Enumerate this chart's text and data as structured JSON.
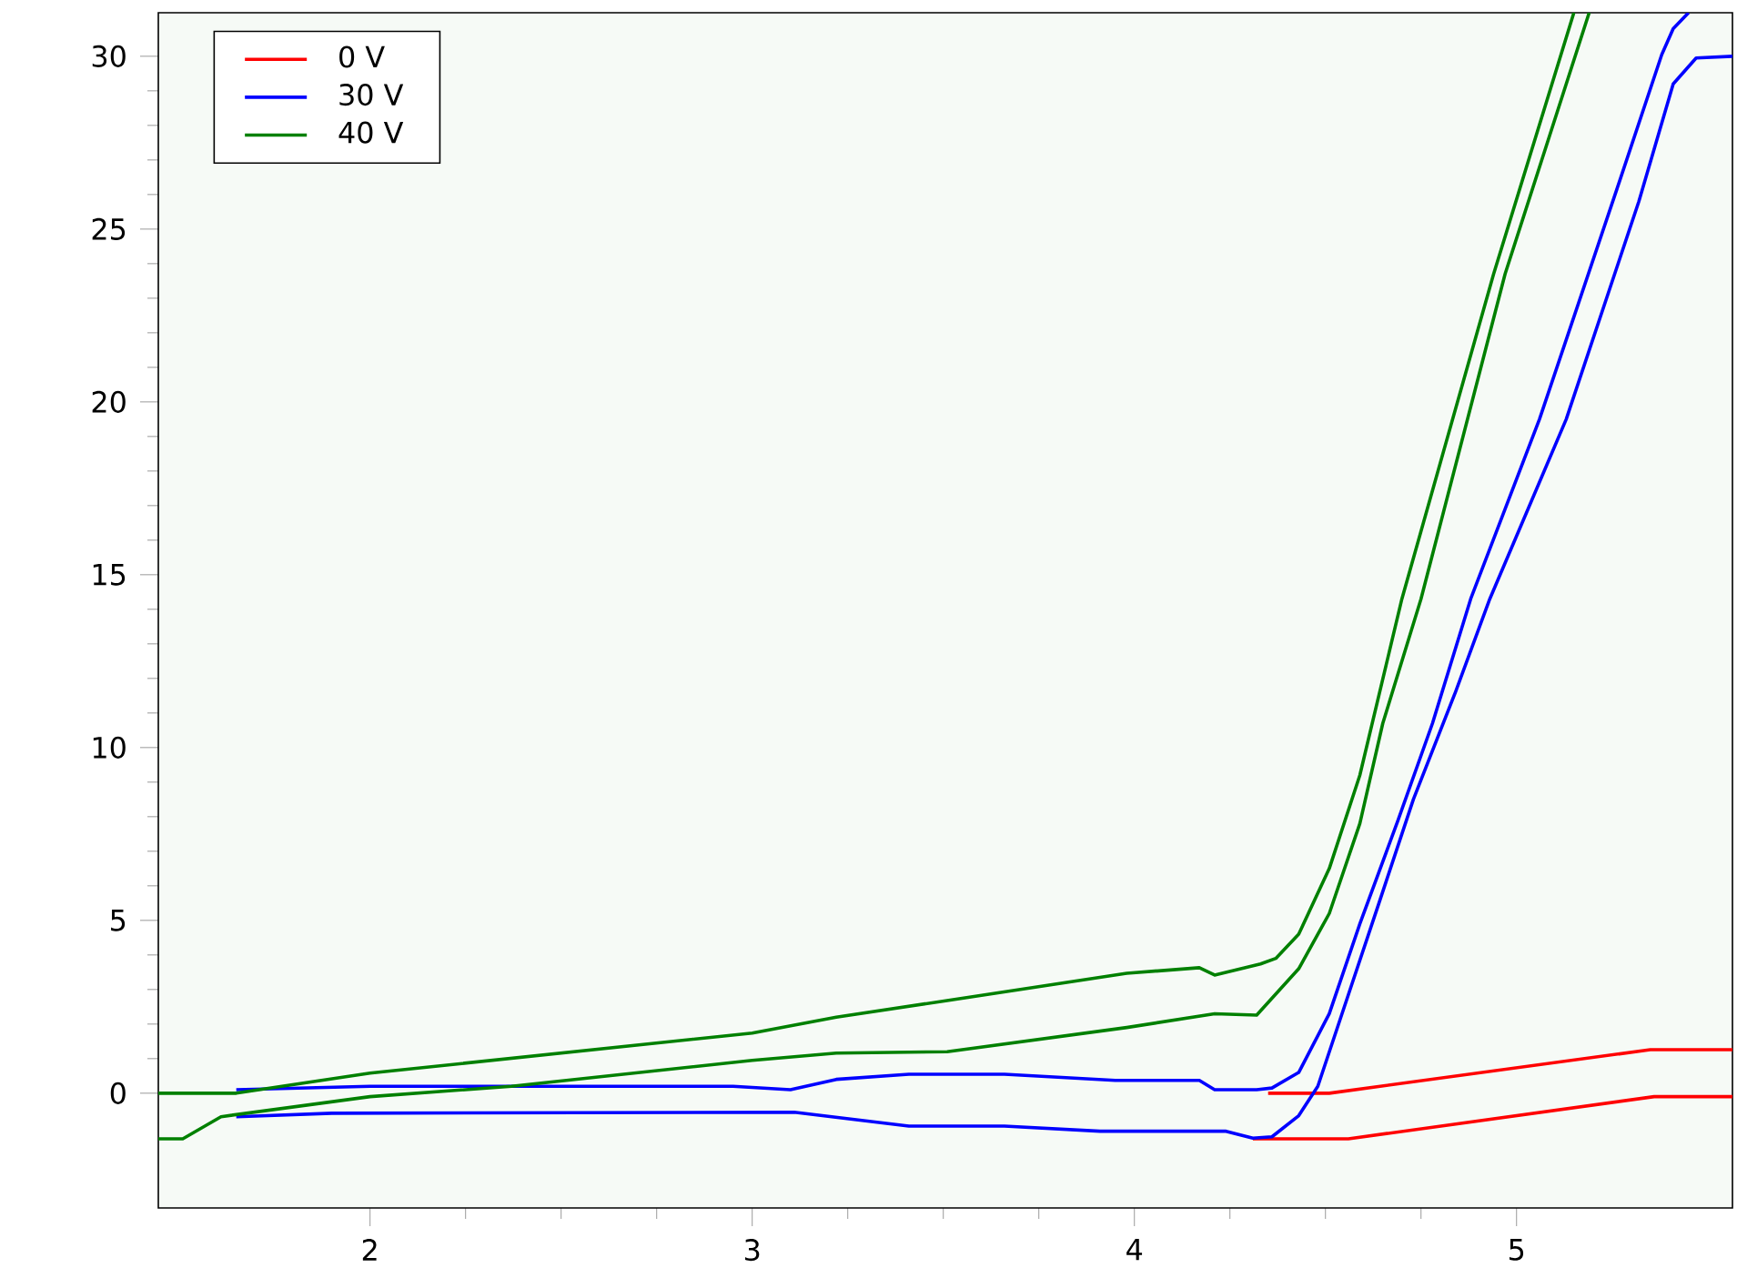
{
  "chart_data": {
    "type": "line",
    "xlim": [
      1.446,
      5.565
    ],
    "ylim": [
      -3.32,
      31.26
    ],
    "xticks": [
      2,
      3,
      4,
      5
    ],
    "yticks": [
      0,
      5,
      10,
      15,
      20,
      25,
      30
    ],
    "legend": "top left",
    "grid": false,
    "line_style": "solid",
    "series": [
      {
        "name": "0 V",
        "color": "#ff0000",
        "x": [
          4.35,
          4.51,
          5.35,
          5.565
        ],
        "values": [
          0.0,
          0.0,
          1.26,
          1.26
        ]
      },
      {
        "color": "#ff0000",
        "x": [
          4.31,
          4.56,
          5.36,
          5.565
        ],
        "values": [
          -1.32,
          -1.32,
          -0.1,
          -0.1
        ]
      },
      {
        "name": "30 V",
        "color": "#0000ff",
        "x": [
          1.65,
          2.0,
          2.95,
          3.1,
          3.22,
          3.41,
          3.66,
          3.95,
          4.17,
          4.21,
          4.32,
          4.36,
          4.43,
          4.51,
          4.59,
          4.69,
          4.78,
          4.88,
          5.06,
          5.27,
          5.38,
          5.41,
          5.45
        ],
        "values": [
          0.1,
          0.2,
          0.2,
          0.1,
          0.4,
          0.55,
          0.55,
          0.37,
          0.37,
          0.1,
          0.1,
          0.15,
          0.6,
          2.3,
          4.9,
          7.9,
          10.7,
          14.3,
          19.5,
          26.4,
          30.05,
          30.8,
          31.26
        ]
      },
      {
        "color": "#0000ff",
        "x": [
          1.65,
          1.9,
          3.11,
          3.41,
          3.66,
          3.91,
          4.24,
          4.31,
          4.36,
          4.43,
          4.48,
          4.56,
          4.64,
          4.73,
          4.84,
          4.93,
          5.13,
          5.32,
          5.41,
          5.47,
          5.565
        ],
        "values": [
          -0.68,
          -0.58,
          -0.55,
          -0.95,
          -0.95,
          -1.1,
          -1.1,
          -1.3,
          -1.26,
          -0.65,
          0.2,
          2.85,
          5.5,
          8.5,
          11.6,
          14.3,
          19.5,
          25.8,
          29.2,
          29.95,
          30.0
        ]
      },
      {
        "name": "40 V",
        "color": "#008000",
        "x": [
          1.446,
          1.65,
          2.0,
          3.0,
          3.22,
          3.51,
          3.98,
          4.17,
          4.21,
          4.33,
          4.37,
          4.43,
          4.51,
          4.59,
          4.7,
          4.94,
          5.15
        ],
        "values": [
          0.0,
          0.0,
          0.58,
          1.74,
          2.2,
          2.68,
          3.47,
          3.63,
          3.42,
          3.74,
          3.9,
          4.6,
          6.5,
          9.2,
          14.3,
          23.7,
          31.26
        ]
      },
      {
        "color": "#008000",
        "x": [
          1.446,
          1.51,
          1.61,
          2.0,
          2.37,
          3.0,
          3.22,
          3.51,
          3.98,
          4.21,
          4.32,
          4.43,
          4.51,
          4.59,
          4.65,
          4.75,
          4.97,
          5.19
        ],
        "values": [
          -1.32,
          -1.32,
          -0.68,
          -0.1,
          0.2,
          0.95,
          1.16,
          1.2,
          1.9,
          2.3,
          2.26,
          3.6,
          5.2,
          7.8,
          10.7,
          14.3,
          23.7,
          31.26
        ]
      }
    ]
  }
}
